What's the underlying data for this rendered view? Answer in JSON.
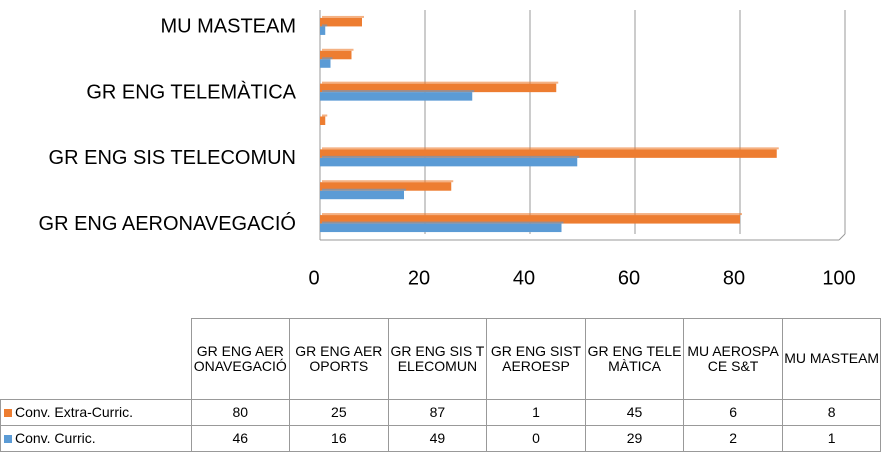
{
  "chart_data": {
    "type": "bar",
    "orientation": "horizontal",
    "categories": [
      "GR ENG AERONAVEGACIÓ",
      "GR ENG AEROPORTS",
      "GR ENG SIS TELECOMUN",
      "GR ENG SIST AEROESP",
      "GR ENG TELEMÀTICA",
      "MU AEROSPACE S&T",
      "MU MASTEAM"
    ],
    "series": [
      {
        "name": "Conv. Extra-Curric.",
        "color": "#ed7d31",
        "values": [
          80,
          25,
          87,
          1,
          45,
          6,
          8
        ]
      },
      {
        "name": "Conv. Curric.",
        "color": "#5b9bd5",
        "values": [
          46,
          16,
          49,
          0,
          29,
          2,
          1
        ]
      }
    ],
    "xlim": [
      0,
      100
    ],
    "xticks": [
      0,
      20,
      40,
      60,
      80,
      100
    ],
    "grid": true,
    "data_table": true
  }
}
